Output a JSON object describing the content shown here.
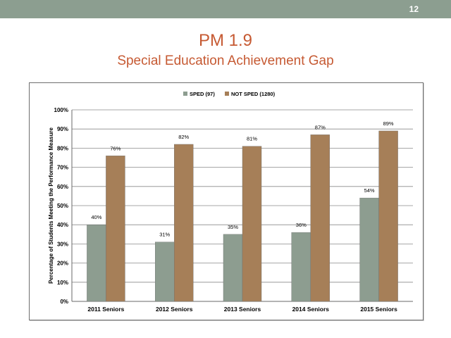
{
  "slide": {
    "number": "12",
    "title": "PM 1.9",
    "subtitle": "Special Education Achievement Gap"
  },
  "colors": {
    "top_bar": "#8c9e90",
    "title": "#c65a33",
    "sped": "#8d9d90",
    "not_sped": "#a67f58"
  },
  "chart_data": {
    "type": "bar",
    "title": "",
    "xlabel": "",
    "ylabel": "Percentage of Students Meeting the Performance Measure",
    "categories": [
      "2011 Seniors",
      "2012 Seniors",
      "2013 Seniors",
      "2014 Seniors",
      "2015 Seniors"
    ],
    "series": [
      {
        "name": "SPED (97)",
        "values": [
          40,
          31,
          35,
          36,
          54
        ],
        "labels": [
          "40%",
          "31%",
          "35%",
          "36%",
          "54%"
        ]
      },
      {
        "name": "NOT SPED (1280)",
        "values": [
          76,
          82,
          81,
          87,
          89
        ],
        "labels": [
          "76%",
          "82%",
          "81%",
          "87%",
          "89%"
        ]
      }
    ],
    "ylim": [
      0,
      100
    ],
    "yticks": [
      0,
      10,
      20,
      30,
      40,
      50,
      60,
      70,
      80,
      90,
      100
    ],
    "ytick_labels": [
      "0%",
      "10%",
      "20%",
      "30%",
      "40%",
      "50%",
      "60%",
      "70%",
      "80%",
      "90%",
      "100%"
    ],
    "grid": true,
    "legend_position": "top-center"
  }
}
